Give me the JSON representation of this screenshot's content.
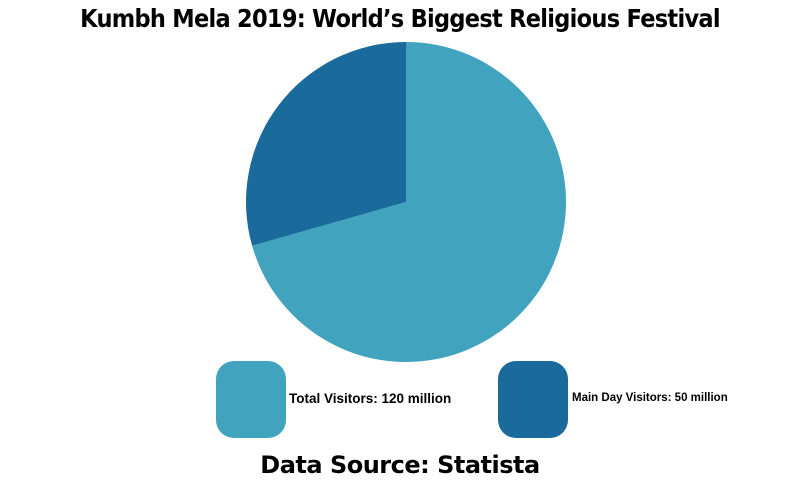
{
  "title": "Kumbh Mela 2019: World’s Biggest Religious Festival",
  "source": "Data Source: Statista",
  "colors": {
    "total_visitors": "#41a3bd",
    "main_day_visitors": "#1a6b9c",
    "text": "#000000",
    "background": "#ffffff"
  },
  "legend": [
    {
      "label": "Total Visitors: 120 million",
      "color": "#41a3bd"
    },
    {
      "label": "Main Day Visitors: 50 million",
      "color": "#1a6b9c"
    }
  ],
  "chart_data": {
    "type": "pie",
    "title": "Kumbh Mela 2019: World’s Biggest Religious Festival",
    "categories": [
      "Total Visitors",
      "Main Day Visitors"
    ],
    "values": [
      120,
      50
    ],
    "units": "million",
    "percentages": [
      70.6,
      29.4
    ],
    "colors": [
      "#41a3bd",
      "#1a6b9c"
    ],
    "legend_position": "bottom",
    "annotations": [
      "Data Source: Statista"
    ]
  }
}
